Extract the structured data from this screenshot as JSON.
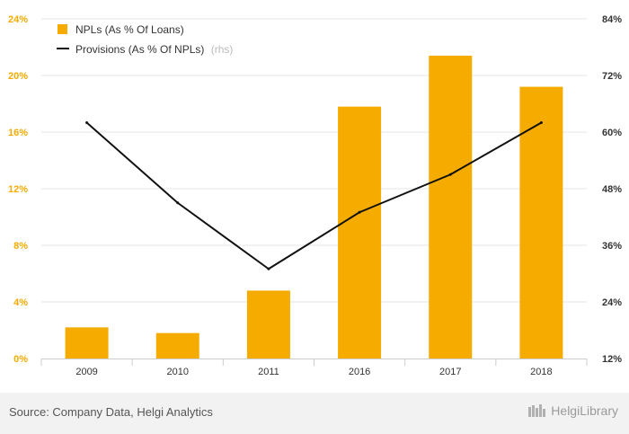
{
  "chart_data": {
    "type": "bar",
    "categories": [
      "2009",
      "2010",
      "2011",
      "2016",
      "2017",
      "2018"
    ],
    "series": [
      {
        "name": "NPLs (As % Of Loans)",
        "type": "bar",
        "axis": "left",
        "color": "#f5ab00",
        "values": [
          2.2,
          1.8,
          4.8,
          17.8,
          21.4,
          19.2
        ]
      },
      {
        "name": "Provisions (As % Of NPLs)",
        "name_suffix": "(rhs)",
        "type": "line",
        "axis": "right",
        "color": "#111111",
        "values": [
          62,
          45,
          31,
          43,
          51,
          62
        ]
      }
    ],
    "y_left": {
      "ylim": [
        0,
        24
      ],
      "ticks": [
        "0%",
        "4%",
        "8%",
        "12%",
        "16%",
        "20%",
        "24%"
      ]
    },
    "y_right": {
      "ylim": [
        12,
        84
      ],
      "ticks": [
        "12%",
        "24%",
        "36%",
        "48%",
        "60%",
        "72%",
        "84%"
      ]
    },
    "legend_position": "top-left",
    "grid": "horizontal",
    "title": "",
    "xlabel": "",
    "ylabel": ""
  },
  "footer": {
    "source": "Source: Company Data, Helgi Analytics",
    "brand": "HelgiLibrary"
  },
  "colors": {
    "bar": "#f5ab00",
    "line": "#111111",
    "left_tick": "#f5ab00",
    "right_tick": "#333333",
    "grid": "#e6e6e6"
  }
}
